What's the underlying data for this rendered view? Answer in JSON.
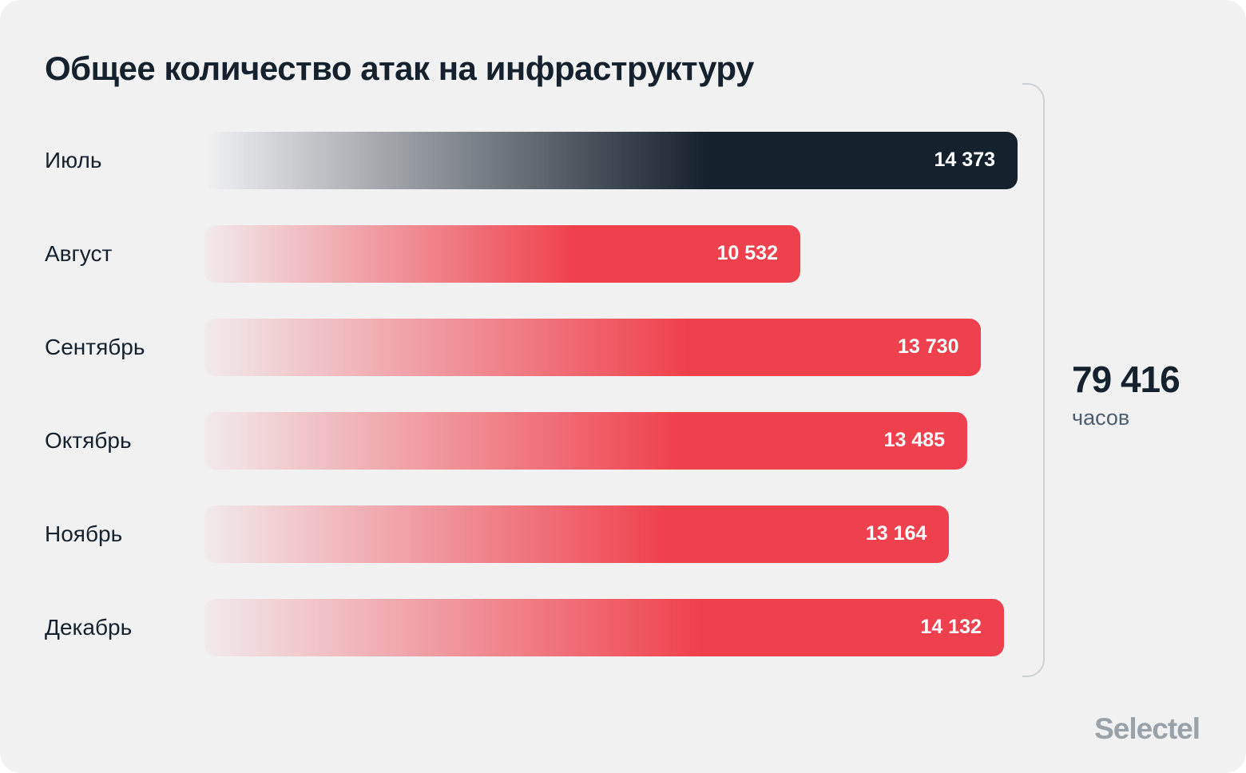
{
  "chart_data": {
    "type": "bar",
    "orientation": "horizontal",
    "title": "Общее количество атак на инфраструктуру",
    "categories": [
      "Июль",
      "Август",
      "Сентябрь",
      "Октябрь",
      "Ноябрь",
      "Декабрь"
    ],
    "values": [
      14373,
      10532,
      13730,
      13485,
      13164,
      14132
    ],
    "value_labels": [
      "14 373",
      "10 532",
      "13 730",
      "13 485",
      "13 164",
      "14 132"
    ],
    "xlim": [
      0,
      14373
    ],
    "legend": "none",
    "grid": false,
    "bar_colors": [
      {
        "from": "rgba(21, 33, 45, 0)",
        "to": "#15212d"
      },
      {
        "from": "rgba(239, 65, 77, 0.04)",
        "to": "#ef414d"
      },
      {
        "from": "rgba(239, 65, 77, 0.04)",
        "to": "#ef414d"
      },
      {
        "from": "rgba(239, 65, 77, 0.04)",
        "to": "#ef414d"
      },
      {
        "from": "rgba(239, 65, 77, 0.04)",
        "to": "#ef414d"
      },
      {
        "from": "rgba(239, 65, 77, 0.04)",
        "to": "#ef414d"
      }
    ],
    "annotations": [
      {
        "text": "79 416 часов",
        "position": "right-bracket"
      }
    ]
  },
  "summary": {
    "value": "79 416",
    "unit": "часов"
  },
  "branding": {
    "logo": "Selectel"
  },
  "colors": {
    "background": "#f1f1f2",
    "title_text": "#15212d",
    "bar_dark": "#15212d",
    "bar_red": "#ef414d",
    "bracket": "#ccd1d6",
    "logo_gray": "#99a1a9"
  }
}
